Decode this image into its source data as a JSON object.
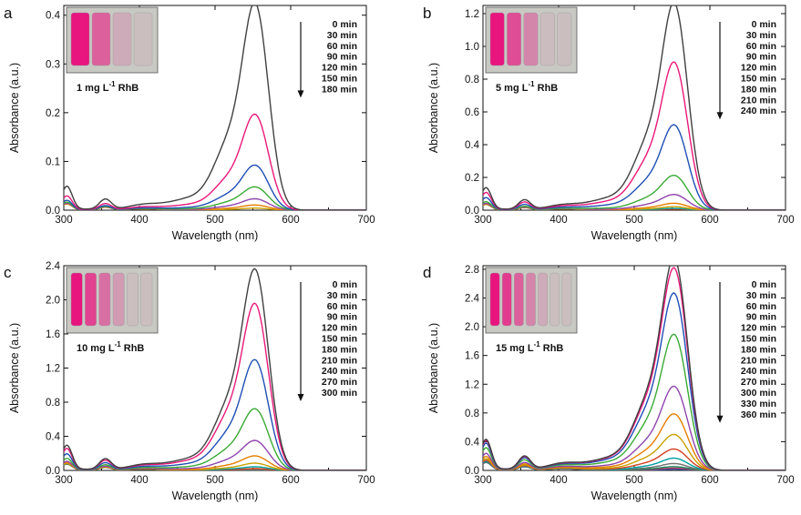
{
  "chart_data": [
    {
      "panel": "a",
      "type": "line",
      "xlabel": "Wavelength (nm)",
      "ylabel": "Absorbance (a.u.)",
      "xlim": [
        300,
        700
      ],
      "ylim": [
        0,
        0.42
      ],
      "xticks": [
        "300",
        "400",
        "500",
        "600",
        "700"
      ],
      "yticks": [
        {
          "v": 0.0,
          "label": "0.0"
        },
        {
          "v": 0.1,
          "label": "0.1"
        },
        {
          "v": 0.2,
          "label": "0.2"
        },
        {
          "v": 0.3,
          "label": "0.3"
        },
        {
          "v": 0.4,
          "label": "0.4"
        }
      ],
      "annotation": "1 mg L-1 RhB",
      "vial_count": 4,
      "series": [
        {
          "name": "0 min",
          "peak": 0.4,
          "color": "#404040"
        },
        {
          "name": "30 min",
          "peak": 0.185,
          "color": "#e8197a"
        },
        {
          "name": "60 min",
          "peak": 0.087,
          "color": "#1f4fb4"
        },
        {
          "name": "90 min",
          "peak": 0.045,
          "color": "#3aaa35"
        },
        {
          "name": "120 min",
          "peak": 0.022,
          "color": "#8e44ad"
        },
        {
          "name": "150 min",
          "peak": 0.01,
          "color": "#e67e00"
        },
        {
          "name": "180 min",
          "peak": 0.004,
          "color": "#c8a000"
        }
      ],
      "uv_peak_0": 0.05
    },
    {
      "panel": "b",
      "type": "line",
      "xlabel": "Wavelength (nm)",
      "ylabel": "Absorbance (a.u.)",
      "xlim": [
        300,
        700
      ],
      "ylim": [
        0,
        1.25
      ],
      "xticks": [
        "300",
        "400",
        "500",
        "600",
        "700"
      ],
      "yticks": [
        {
          "v": 0.0,
          "label": "0.0"
        },
        {
          "v": 0.2,
          "label": "0.2"
        },
        {
          "v": 0.4,
          "label": "0.4"
        },
        {
          "v": 0.6,
          "label": "0.6"
        },
        {
          "v": 0.8,
          "label": "0.8"
        },
        {
          "v": 1.0,
          "label": "1.0"
        },
        {
          "v": 1.2,
          "label": "1.2"
        }
      ],
      "annotation": "5 mg L-1 RhB",
      "vial_count": 5,
      "series": [
        {
          "name": "0 min",
          "peak": 1.19,
          "color": "#404040"
        },
        {
          "name": "30 min",
          "peak": 0.85,
          "color": "#e8197a"
        },
        {
          "name": "60 min",
          "peak": 0.49,
          "color": "#1f4fb4"
        },
        {
          "name": "90 min",
          "peak": 0.2,
          "color": "#3aaa35"
        },
        {
          "name": "120 min",
          "peak": 0.09,
          "color": "#8e44ad"
        },
        {
          "name": "150 min",
          "peak": 0.04,
          "color": "#e67e00"
        },
        {
          "name": "180 min",
          "peak": 0.02,
          "color": "#c8a000"
        },
        {
          "name": "210 min",
          "peak": 0.01,
          "color": "#00a0a0"
        },
        {
          "name": "240 min",
          "peak": 0.005,
          "color": "#d04020"
        }
      ],
      "uv_peak_0": 0.14
    },
    {
      "panel": "c",
      "type": "line",
      "xlabel": "Wavelength (nm)",
      "ylabel": "Absorbance (a.u.)",
      "xlim": [
        300,
        700
      ],
      "ylim": [
        0,
        2.4
      ],
      "xticks": [
        "300",
        "400",
        "500",
        "600",
        "700"
      ],
      "yticks": [
        {
          "v": 0.0,
          "label": "0.0"
        },
        {
          "v": 0.4,
          "label": "0.4"
        },
        {
          "v": 0.8,
          "label": "0.8"
        },
        {
          "v": 1.2,
          "label": "1.2"
        },
        {
          "v": 1.6,
          "label": "1.6"
        },
        {
          "v": 2.0,
          "label": "2.0"
        },
        {
          "v": 2.4,
          "label": "2.4"
        }
      ],
      "annotation": "10 mg L-1 RhB",
      "vial_count": 6,
      "series": [
        {
          "name": "0 min",
          "peak": 2.22,
          "color": "#404040"
        },
        {
          "name": "30 min",
          "peak": 1.84,
          "color": "#e8197a"
        },
        {
          "name": "60 min",
          "peak": 1.22,
          "color": "#1f4fb4"
        },
        {
          "name": "90 min",
          "peak": 0.68,
          "color": "#3aaa35"
        },
        {
          "name": "120 min",
          "peak": 0.33,
          "color": "#8e44ad"
        },
        {
          "name": "150 min",
          "peak": 0.16,
          "color": "#e67e00"
        },
        {
          "name": "180 min",
          "peak": 0.08,
          "color": "#c8a000"
        },
        {
          "name": "210 min",
          "peak": 0.04,
          "color": "#00a0a0"
        },
        {
          "name": "240 min",
          "peak": 0.02,
          "color": "#d04020"
        },
        {
          "name": "270 min",
          "peak": 0.01,
          "color": "#707070"
        },
        {
          "name": "300 min",
          "peak": 0.005,
          "color": "#1a8a5a"
        }
      ],
      "uv_peak_0": 0.3
    },
    {
      "panel": "d",
      "type": "line",
      "xlabel": "Wavelength (nm)",
      "ylabel": "Absorbance (a.u.)",
      "xlim": [
        300,
        700
      ],
      "ylim": [
        0,
        2.85
      ],
      "xticks": [
        "300",
        "400",
        "500",
        "600",
        "700"
      ],
      "yticks": [
        {
          "v": 0.0,
          "label": "0.0"
        },
        {
          "v": 0.4,
          "label": "0.4"
        },
        {
          "v": 0.8,
          "label": "0.8"
        },
        {
          "v": 1.2,
          "label": "1.2"
        },
        {
          "v": 1.6,
          "label": "1.6"
        },
        {
          "v": 2.0,
          "label": "2.0"
        },
        {
          "v": 2.4,
          "label": "2.4"
        },
        {
          "v": 2.8,
          "label": "2.8"
        }
      ],
      "annotation": "15 mg L-1 RhB",
      "vial_count": 7,
      "series": [
        {
          "name": "0 min",
          "peak": 2.78,
          "color": "#404040"
        },
        {
          "name": "30 min",
          "peak": 2.65,
          "color": "#e8197a"
        },
        {
          "name": "60 min",
          "peak": 2.32,
          "color": "#1f4fb4"
        },
        {
          "name": "90 min",
          "peak": 1.78,
          "color": "#3aaa35"
        },
        {
          "name": "120 min",
          "peak": 1.1,
          "color": "#8e44ad"
        },
        {
          "name": "150 min",
          "peak": 0.74,
          "color": "#e67e00"
        },
        {
          "name": "180 min",
          "peak": 0.47,
          "color": "#c8a000"
        },
        {
          "name": "210 min",
          "peak": 0.28,
          "color": "#d04020"
        },
        {
          "name": "240 min",
          "peak": 0.16,
          "color": "#00a0a0"
        },
        {
          "name": "270 min",
          "peak": 0.09,
          "color": "#707070"
        },
        {
          "name": "300 min",
          "peak": 0.05,
          "color": "#1a8a5a"
        },
        {
          "name": "330 min",
          "peak": 0.03,
          "color": "#b03060"
        },
        {
          "name": "360 min",
          "peak": 0.015,
          "color": "#3060b0"
        }
      ],
      "uv_peak_0": 0.44
    }
  ]
}
